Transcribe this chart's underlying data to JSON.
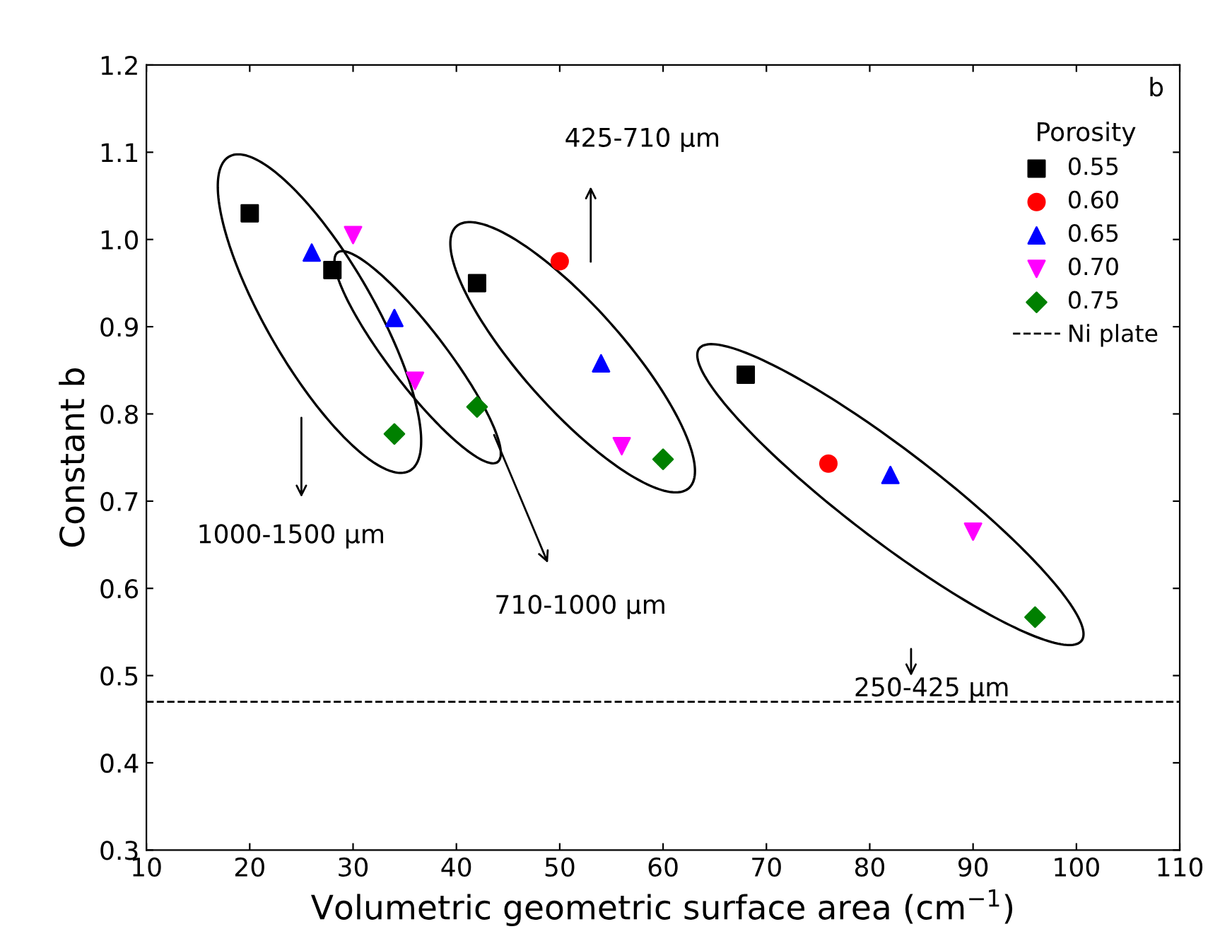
{
  "chart_data": {
    "type": "scatter",
    "xlabel": "Volumetric geometric surface area (cm$^{−1}$)",
    "ylabel": "Constant b",
    "legend_title": "Porosity",
    "legend": "top right",
    "grid": false,
    "xlim": [
      10,
      110
    ],
    "xticks": [
      10,
      20,
      30,
      40,
      50,
      60,
      70,
      80,
      90,
      100,
      110
    ],
    "ylim": [
      0.3,
      1.2
    ],
    "yticks": [
      0.3,
      0.4,
      0.5,
      0.6,
      0.7,
      0.8,
      0.9,
      {
        "value": 1.0,
        "label": "1.0"
      },
      1.1,
      1.2
    ],
    "series": [
      {
        "name": "0.55",
        "color": "#000000",
        "marker": "square",
        "x": [
          20,
          28,
          42,
          68
        ],
        "values": [
          1.03,
          0.965,
          0.95,
          0.845
        ]
      },
      {
        "name": "0.60",
        "color": "#ff0000",
        "marker": "circle",
        "x": [
          50,
          76
        ],
        "values": [
          0.975,
          0.743
        ]
      },
      {
        "name": "0.65",
        "color": "#0000ff",
        "marker": "triangle",
        "x": [
          26,
          34,
          54,
          82
        ],
        "values": [
          0.985,
          0.91,
          0.858,
          0.73
        ]
      },
      {
        "name": "0.70",
        "color": "#ff00ff",
        "marker": "triangle_down",
        "x": [
          30,
          36,
          56,
          90
        ],
        "values": [
          1.005,
          0.838,
          0.763,
          0.665
        ]
      },
      {
        "name": "0.75",
        "color": "#008000",
        "marker": "diamond",
        "x": [
          34,
          42,
          60,
          96
        ],
        "values": [
          0.777,
          0.808,
          0.748,
          0.567
        ]
      }
    ],
    "ref_lines": [
      {
        "axis": "y",
        "value": 0.47,
        "label": "Ni plate",
        "line_style": "dashed",
        "color": "#000000"
      }
    ],
    "annotations": [
      "425-710 μm",
      "1000-1500 μm",
      "710-1000 μm",
      "250-425 μm",
      "b"
    ]
  }
}
